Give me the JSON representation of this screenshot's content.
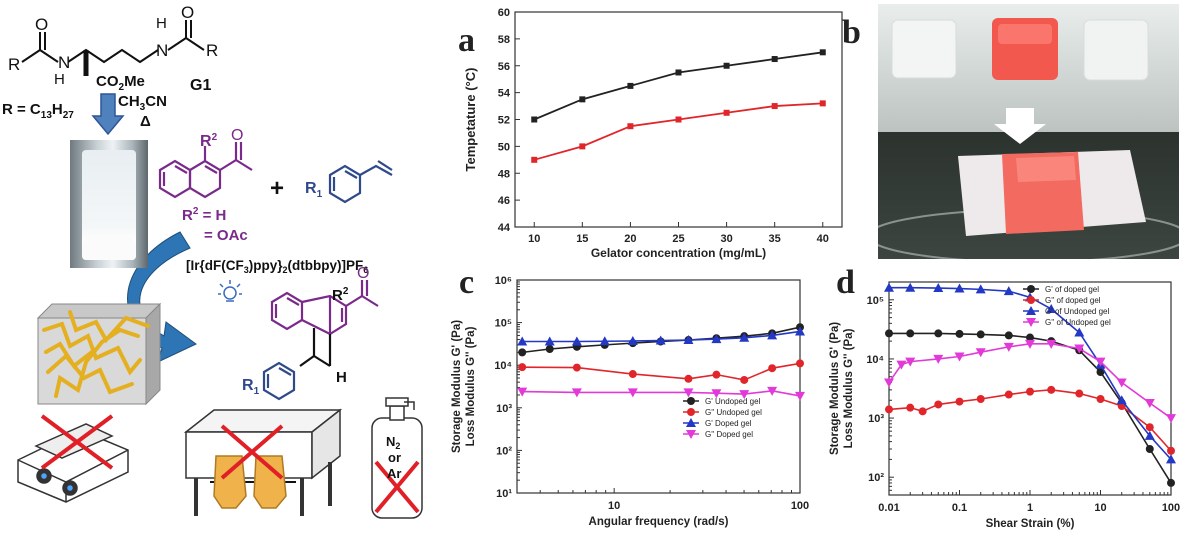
{
  "scheme": {
    "r_label": "R = C",
    "r_sub": "13",
    "r_tail": "H",
    "r_sub2": "27",
    "solvent": "CH",
    "solvent_sub": "3",
    "solvent_tail": "CN",
    "delta": "Δ",
    "gelator": "G1",
    "methyl_ester": "CO",
    "methyl_ester_sub": "2",
    "methyl_ester_tail": "Me",
    "r_group": "R",
    "nh": "N",
    "h": "H",
    "o": "O",
    "r2_label": "R",
    "r2_sup": "2",
    "r2_h": " = H",
    "r2_oac": "= OAc",
    "plus": "+",
    "r1": "R",
    "r1_sub": "1",
    "catalyst": "[Ir{dF(CF",
    "catalyst_sub1": "3",
    "catalyst_mid": ")ppy}",
    "catalyst_sub2": "2",
    "catalyst_tail": "(dtbbpy)]PF",
    "catalyst_sub3": "6",
    "gas_n2": "N",
    "gas_n2_sub": "2",
    "gas_or": "or",
    "gas_ar": "Ar",
    "colors": {
      "blue": "#2f4a8a",
      "purple": "#7a2a8a",
      "gold": "#e4b021",
      "red": "#e01f26",
      "arrow": "#4f81bd"
    }
  },
  "panel_labels": {
    "a": "a",
    "b": "b",
    "c": "c",
    "d": "d"
  },
  "chart_data": [
    {
      "type": "line",
      "panel": "a",
      "xlabel": "Gelator concentration (mg/mL)",
      "ylabel": "Tempetature (°C)",
      "xlim": [
        8,
        42
      ],
      "ylim": [
        44,
        60
      ],
      "xticks": [
        10,
        15,
        20,
        25,
        30,
        35,
        40
      ],
      "yticks": [
        44,
        46,
        48,
        50,
        52,
        54,
        56,
        58,
        60
      ],
      "x": [
        10,
        15,
        20,
        25,
        30,
        35,
        40
      ],
      "series": [
        {
          "color": "#222222",
          "values": [
            52.0,
            53.5,
            54.5,
            55.5,
            56.0,
            56.5,
            57.0
          ]
        },
        {
          "color": "#e0262b",
          "values": [
            49.0,
            50.0,
            51.5,
            52.0,
            52.5,
            53.0,
            53.2
          ]
        }
      ]
    },
    {
      "type": "line",
      "panel": "c",
      "scale": "log-log",
      "xlabel": "Angular frequency (rad/s)",
      "ylabel_line1": "Storage Modulus G' (Pa)",
      "ylabel_line2": "Loss Modulus G'' (Pa)",
      "xlim": [
        3,
        100
      ],
      "ylim": [
        10,
        1000000
      ],
      "xticks": [
        10,
        100
      ],
      "xticklabels": [
        "10",
        "100"
      ],
      "yticks": [
        10,
        100,
        1000,
        10000,
        100000,
        1000000
      ],
      "yticklabels": [
        "10¹",
        "10²",
        "10³",
        "10⁴",
        "10⁵",
        "10⁶"
      ],
      "legend_position": "bottom-right",
      "series": [
        {
          "name": "G' Undoped gel",
          "color": "#222222",
          "marker": "circle",
          "x": [
            3.2,
            4.5,
            6.3,
            8.9,
            12.6,
            17.8,
            25.1,
            35.5,
            50.1,
            70.8,
            100
          ],
          "values": [
            20000,
            24000,
            27000,
            30000,
            33000,
            36000,
            39000,
            43000,
            48000,
            56000,
            78000
          ]
        },
        {
          "name": "G'' Undoped gel",
          "color": "#e0262b",
          "marker": "circle",
          "x": [
            3.2,
            6.3,
            12.6,
            25.1,
            35.5,
            50.1,
            70.8,
            100
          ],
          "values": [
            9000,
            8800,
            6200,
            4800,
            6000,
            4500,
            8500,
            11000
          ]
        },
        {
          "name": "G' Doped gel",
          "color": "#2338c4",
          "marker": "triangle",
          "x": [
            3.2,
            4.5,
            6.3,
            8.9,
            12.6,
            17.8,
            25.1,
            35.5,
            50.1,
            70.8,
            100
          ],
          "values": [
            36000,
            36000,
            36000,
            36500,
            37000,
            38000,
            39000,
            41000,
            44000,
            50000,
            62000
          ]
        },
        {
          "name": "G'' Doped gel",
          "color": "#e23ad8",
          "marker": "triangle-down",
          "x": [
            3.2,
            6.3,
            12.6,
            25.1,
            35.5,
            50.1,
            70.8,
            100
          ],
          "values": [
            2400,
            2300,
            2300,
            2300,
            2200,
            2100,
            2500,
            1900
          ]
        }
      ]
    },
    {
      "type": "line",
      "panel": "d",
      "scale": "log-log",
      "xlabel": "Shear Strain (%)",
      "ylabel_line1": "Storage Modulus G' (Pa)",
      "ylabel_line2": "Loss Modulus G'' (Pa)",
      "xlim": [
        0.01,
        100
      ],
      "ylim": [
        50,
        200000
      ],
      "xticks": [
        0.01,
        0.1,
        1,
        10,
        100
      ],
      "xticklabels": [
        "0.01",
        "0.1",
        "1",
        "10",
        "100"
      ],
      "yticks": [
        100,
        1000,
        10000,
        100000
      ],
      "yticklabels": [
        "10²",
        "10³",
        "10⁴",
        "10⁵"
      ],
      "legend_position": "top-right",
      "series": [
        {
          "name": "G' of doped gel",
          "color": "#222222",
          "marker": "circle",
          "x": [
            0.01,
            0.02,
            0.05,
            0.1,
            0.2,
            0.5,
            1,
            2,
            5,
            10,
            20,
            50,
            100
          ],
          "values": [
            27000,
            27000,
            27000,
            26500,
            26000,
            25000,
            23000,
            20000,
            14000,
            6000,
            1800,
            300,
            80
          ]
        },
        {
          "name": "G'' of doped gel",
          "color": "#e0262b",
          "marker": "circle",
          "x": [
            0.01,
            0.02,
            0.03,
            0.05,
            0.1,
            0.2,
            0.5,
            1,
            2,
            5,
            10,
            20,
            50,
            100
          ],
          "values": [
            1400,
            1500,
            1300,
            1700,
            1900,
            2100,
            2500,
            2800,
            3000,
            2600,
            2100,
            1600,
            700,
            280
          ]
        },
        {
          "name": "G' of Undoped gel",
          "color": "#2338c4",
          "marker": "triangle",
          "x": [
            0.01,
            0.02,
            0.05,
            0.1,
            0.2,
            0.5,
            1,
            2,
            5,
            10,
            20,
            50,
            100
          ],
          "values": [
            160000,
            160000,
            158000,
            155000,
            150000,
            140000,
            110000,
            70000,
            28000,
            8000,
            2000,
            500,
            200
          ]
        },
        {
          "name": "G'' of Undoped gel",
          "color": "#e23ad8",
          "marker": "triangle-down",
          "x": [
            0.01,
            0.015,
            0.02,
            0.05,
            0.1,
            0.2,
            0.5,
            1,
            2,
            5,
            10,
            20,
            50,
            100
          ],
          "values": [
            4000,
            8000,
            9000,
            10000,
            11000,
            13000,
            16000,
            18000,
            18000,
            15000,
            9000,
            4000,
            1800,
            1000
          ]
        }
      ]
    }
  ]
}
